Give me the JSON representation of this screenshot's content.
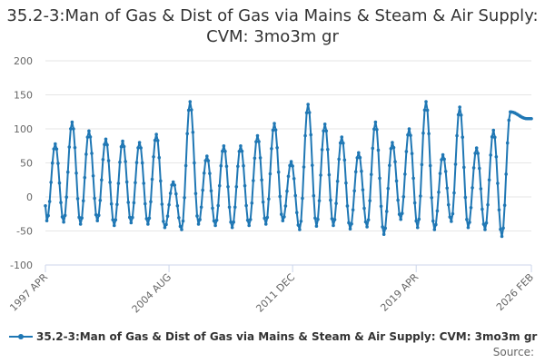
{
  "chart_data": {
    "type": "line",
    "title": "35.2-3:Man of Gas & Dist of Gas via Mains & Steam & Air Supply: CVM: 3mo3m gr",
    "xlabel": "",
    "ylabel": "",
    "ylim": [
      -100,
      200
    ],
    "y_ticks": [
      "-100",
      "-50",
      "0",
      "50",
      "100",
      "150",
      "200"
    ],
    "x_ticks": [
      "1997 APR",
      "2004 AUG",
      "2011 DEC",
      "2019 APR",
      "2026 FEB"
    ],
    "series": [
      {
        "name": "35.2-3:Man of Gas & Dist of Gas via Mains & Steam & Air Supply: CVM: 3mo3m gr",
        "color": "#1f77b4",
        "start": "1997 APR",
        "end": "2026 FEB",
        "frequency": "monthly",
        "peaks": [
          78,
          110,
          97,
          85,
          82,
          80,
          92,
          22,
          140,
          60,
          75,
          75,
          90,
          108,
          52,
          136,
          107,
          88,
          65,
          110,
          80,
          100,
          140,
          62,
          132,
          72,
          98,
          125,
          115
        ],
        "troughs": [
          -35,
          -37,
          -40,
          -35,
          -42,
          -38,
          -40,
          -45,
          -48,
          -40,
          -42,
          -45,
          -42,
          -40,
          -35,
          -48,
          -43,
          -42,
          -47,
          -44,
          -55,
          -33,
          -45,
          -48,
          -36,
          -45,
          -48,
          -58
        ]
      }
    ],
    "legend": "bottom-left"
  },
  "source_label": "Source:"
}
